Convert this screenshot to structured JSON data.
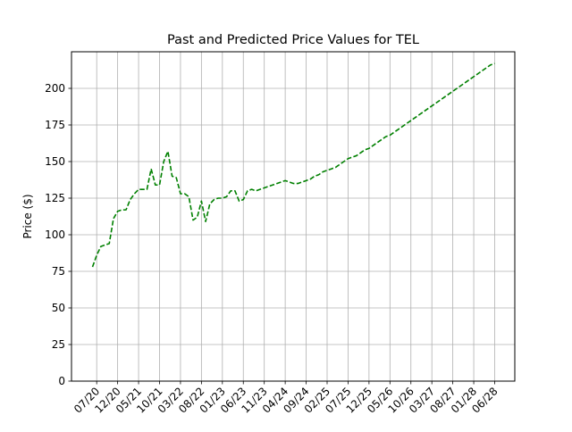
{
  "chart_data": {
    "type": "line",
    "title": "Past and Predicted Price Values for TEL",
    "xlabel": "",
    "ylabel": "Price ($)",
    "ylim": [
      0,
      225
    ],
    "yticks": [
      0,
      25,
      50,
      75,
      100,
      125,
      150,
      175,
      200
    ],
    "xticks": [
      "07/20",
      "12/20",
      "05/21",
      "10/21",
      "03/22",
      "08/22",
      "01/23",
      "06/23",
      "11/23",
      "04/24",
      "09/24",
      "02/25",
      "07/25",
      "12/25",
      "05/26",
      "10/26",
      "03/27",
      "08/27",
      "01/28",
      "06/28"
    ],
    "grid": true,
    "line_color": "#008000",
    "line_style": "dashed",
    "series": [
      {
        "x": [
          "2020-06",
          "2020-07",
          "2020-08",
          "2020-09",
          "2020-10",
          "2020-11",
          "2020-12",
          "2021-01",
          "2021-02",
          "2021-03",
          "2021-04",
          "2021-05",
          "2021-06",
          "2021-07",
          "2021-08",
          "2021-09",
          "2021-10",
          "2021-11",
          "2021-12",
          "2022-01",
          "2022-02",
          "2022-03",
          "2022-04",
          "2022-05",
          "2022-06",
          "2022-07",
          "2022-08",
          "2022-09",
          "2022-10",
          "2022-11",
          "2022-12",
          "2023-01",
          "2023-02",
          "2023-03",
          "2023-04",
          "2023-05",
          "2023-06",
          "2023-07",
          "2023-08",
          "2023-09",
          "2023-10",
          "2023-11",
          "2023-12",
          "2024-01",
          "2024-02",
          "2024-03",
          "2024-04",
          "2024-05",
          "2024-06",
          "2024-07",
          "2024-08",
          "2024-09",
          "2024-10",
          "2024-11",
          "2024-12",
          "2025-01",
          "2025-02",
          "2025-03",
          "2025-04",
          "2025-05",
          "2025-06",
          "2025-07",
          "2025-08",
          "2025-09",
          "2025-10",
          "2025-11",
          "2025-12",
          "2026-01",
          "2026-02",
          "2026-03",
          "2026-04",
          "2026-05",
          "2026-06",
          "2026-07",
          "2026-08",
          "2026-09",
          "2026-10",
          "2026-11",
          "2026-12",
          "2027-01",
          "2027-02",
          "2027-03",
          "2027-04",
          "2027-05",
          "2027-06",
          "2027-07",
          "2027-08",
          "2027-09",
          "2027-10",
          "2027-11",
          "2027-12",
          "2028-01",
          "2028-02",
          "2028-03",
          "2028-04",
          "2028-05",
          "2028-06"
        ],
        "values": [
          78,
          86,
          92,
          93,
          94,
          111,
          116,
          117,
          117,
          124,
          128,
          131,
          131,
          131,
          145,
          134,
          134,
          150,
          157,
          140,
          139,
          128,
          128,
          126,
          110,
          112,
          123,
          109,
          121,
          124,
          125,
          125,
          126,
          130,
          130,
          123,
          124,
          130,
          131,
          130,
          131,
          132,
          133,
          134,
          135,
          136,
          137,
          136,
          135,
          135,
          136,
          137,
          138,
          140,
          141,
          143,
          144,
          145,
          146,
          148,
          150,
          152,
          153,
          154,
          156,
          158,
          159,
          161,
          163,
          165,
          167,
          168,
          170,
          172,
          174,
          176,
          178,
          180,
          182,
          184,
          186,
          188,
          190,
          192,
          194,
          196,
          198,
          200,
          202,
          204,
          206,
          208,
          210,
          212,
          214,
          216,
          217
        ]
      }
    ]
  }
}
